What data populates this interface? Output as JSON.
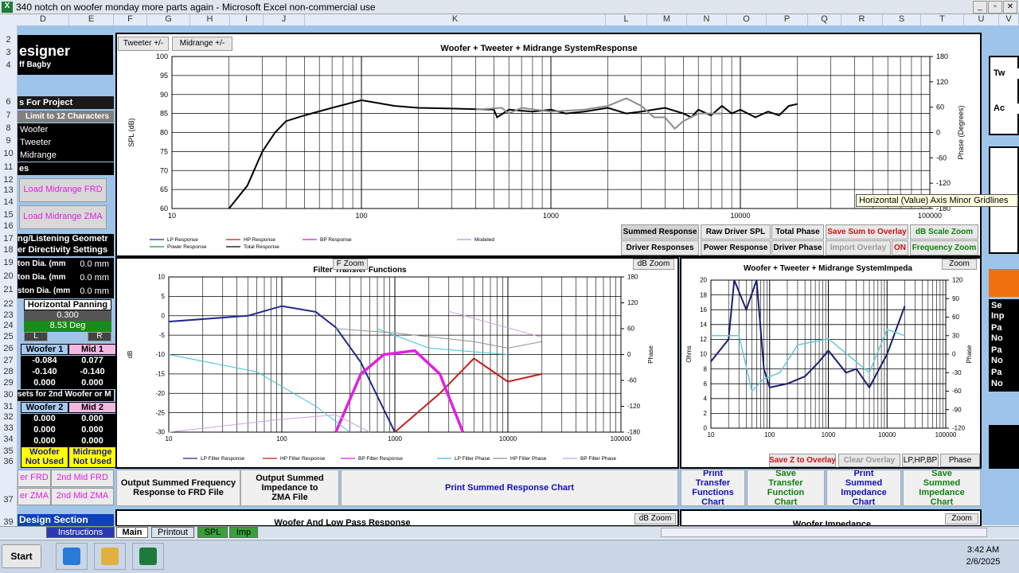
{
  "window": {
    "icon": "X",
    "title": "340 notch on woofer monday more parts again - Microsoft Excel non-commercial use"
  },
  "column_headers": [
    "D",
    "E",
    "F",
    "G",
    "H",
    "I",
    "J",
    "K",
    "L",
    "M",
    "N",
    "O",
    "P",
    "Q",
    "R",
    "S",
    "T",
    "U",
    "V"
  ],
  "row_headers": [
    "2",
    "3",
    "4",
    "6",
    "7",
    "8",
    "9",
    "10",
    "11",
    "12",
    "13",
    "14",
    "15",
    "16",
    "17",
    "18",
    "19",
    "20",
    "21",
    "22",
    "23",
    "24",
    "25",
    "26",
    "27",
    "28",
    "29",
    "30",
    "31",
    "32",
    "33",
    "34",
    "35",
    "36",
    "37",
    "39"
  ],
  "left_panel": {
    "title": "esigner",
    "author": "ff Bagby",
    "project_header": "s For Project",
    "limit_note": "Limit to 12 Characters",
    "drivers": [
      "Woofer",
      "Tweeter",
      "Midrange"
    ],
    "files_header": "es",
    "load_frd": "Load Midrange FRD",
    "load_zma": "Load Midrange ZMA",
    "geometry_header": "ng/Listening Geometr",
    "directivity_header": "er Directivity Settings",
    "piston_rows": [
      {
        "label": "ton Dia. (mm",
        "value": "0.0 mm"
      },
      {
        "label": "ton Dia. (mm",
        "value": "0.0 mm"
      },
      {
        "label": "ston Dia. (mm",
        "value": "0.0 mm"
      }
    ],
    "panning_label": "Horizontal Panning",
    "panning_value": "0.300",
    "angle": "8.53 Deg",
    "left_btn": "L",
    "right_btn": "R",
    "offsets1": {
      "headers": [
        "Woofer 1",
        "Mid 1"
      ],
      "rows": [
        [
          "-0.084",
          "0.077"
        ],
        [
          "-0.140",
          "-0.140"
        ],
        [
          "0.000",
          "0.000"
        ]
      ]
    },
    "offsets2_header": "sets for 2nd Woofer or M",
    "offsets2": {
      "headers": [
        "Woofer 2",
        "Mid 2"
      ],
      "rows": [
        [
          "0.000",
          "0.000"
        ],
        [
          "0.000",
          "0.000"
        ],
        [
          "0.000",
          "0.000"
        ]
      ]
    },
    "not_used": [
      [
        "Woofer",
        "Not Used"
      ],
      [
        "Midrange",
        "Not Used"
      ]
    ],
    "buttons": [
      "er FRD",
      "2nd Mid FRD",
      "er ZMA",
      "2nd Mid ZMA"
    ],
    "design_section": "Design Section"
  },
  "right_panel": [
    "Tw",
    "Ac",
    "Se",
    "Inp",
    "Pa",
    "No",
    "Pa",
    "No",
    "Pa",
    "No"
  ],
  "chart_data": [
    {
      "type": "line",
      "title": "Woofer + Tweeter + Midrange SystemResponse",
      "log_x": true,
      "grid": true,
      "minor_grid": true,
      "xlim": [
        10,
        100000
      ],
      "xticks": [
        10,
        100,
        1000,
        10000,
        100000
      ],
      "ylim": [
        60,
        100
      ],
      "yticks": [
        100,
        95,
        90,
        85,
        80,
        75,
        70,
        65,
        60
      ],
      "y2lim": [
        -180,
        180
      ],
      "y2ticks": [
        180,
        120,
        60,
        0,
        -60,
        -120,
        -180
      ],
      "ylabel": "SPL (dB)",
      "y2label": "Phase (Degrees)",
      "series": [
        {
          "name": "LP Response",
          "color": "#1f2a8c",
          "x": [],
          "values": []
        },
        {
          "name": "HP Response",
          "color": "#c0201a",
          "x": [],
          "values": []
        },
        {
          "name": "BP Response",
          "color": "#d020d0",
          "x": [],
          "values": []
        },
        {
          "name": "Modeled",
          "color": "#b890d8",
          "x": [],
          "values": []
        },
        {
          "name": "Power Response",
          "color": "#2a8a3a",
          "x": [],
          "values": []
        },
        {
          "name": "Total Response",
          "color": "#000000",
          "x": [
            20,
            25,
            30,
            35,
            40,
            50,
            70,
            100,
            150,
            200,
            300,
            500,
            520,
            600,
            800,
            1000,
            1200,
            1500,
            2000,
            2500,
            3000,
            4000,
            5000,
            5500,
            6000,
            7000,
            8000,
            9000,
            10000,
            12000,
            14000,
            16000,
            18000,
            20000
          ],
          "values": [
            60,
            66,
            75,
            80,
            83,
            84.5,
            86.5,
            88.5,
            87,
            86.5,
            86.3,
            86,
            84,
            86,
            85.5,
            86,
            85,
            85.5,
            86.5,
            85,
            85.5,
            86.5,
            85,
            84,
            86,
            84.5,
            87,
            85,
            86,
            84,
            85.5,
            84.5,
            87,
            87.5
          ]
        },
        {
          "color": "#8c8c8c",
          "x": [
            400,
            550,
            600,
            700,
            1000,
            1500,
            2000,
            2500,
            3000,
            3500,
            4000,
            4500,
            5000,
            6000,
            8000
          ],
          "values": [
            86,
            86.5,
            85,
            86.5,
            85.5,
            86,
            87,
            89,
            87,
            84,
            84,
            81,
            83,
            85,
            85
          ]
        }
      ]
    },
    {
      "type": "line",
      "title": "Filter Transfer Functions",
      "log_x": true,
      "grid": true,
      "minor_grid": true,
      "xlim": [
        10,
        100000
      ],
      "xticks": [
        10,
        100,
        1000,
        10000,
        100000
      ],
      "ylim": [
        -30,
        10
      ],
      "yticks": [
        10,
        5,
        0,
        -5,
        -10,
        -15,
        -20,
        -25,
        -30
      ],
      "y2lim": [
        -180,
        180
      ],
      "y2ticks": [
        180,
        120,
        60,
        0,
        -60,
        -120,
        -180
      ],
      "ylabel": "dB",
      "y2label": "Phase",
      "series": [
        {
          "name": "LP Filter Response",
          "color": "#1f2a8c",
          "x": [
            10,
            50,
            100,
            200,
            300,
            500,
            1000
          ],
          "values": [
            -1.5,
            0,
            2.5,
            1,
            -3,
            -12,
            -30
          ]
        },
        {
          "name": "HP Filter Response",
          "color": "#c0201a",
          "x": [
            1000,
            2500,
            5000,
            10000,
            20000
          ],
          "values": [
            -30,
            -20,
            -11,
            -17,
            -15
          ]
        },
        {
          "name": "BP Filter Response",
          "color": "#e020e0",
          "x": [
            300,
            500,
            800,
            1500,
            2500,
            4000
          ],
          "values": [
            -30,
            -15,
            -10,
            -9,
            -15,
            -30
          ]
        },
        {
          "name": "LP Filter Phase",
          "color": "#40c0e0",
          "axis": "y2",
          "x": [
            10,
            60,
            200,
            400,
            450,
            700,
            2000,
            10000
          ],
          "values": [
            0,
            -40,
            -120,
            -180,
            null,
            60,
            15,
            0
          ]
        },
        {
          "name": "HP Filter Phase",
          "color": "#909090",
          "axis": "y2",
          "x": [
            300,
            1000,
            5000,
            10000,
            20000
          ],
          "values": [
            60,
            50,
            30,
            15,
            30
          ]
        },
        {
          "name": "BP Filter Phase",
          "color": "#c8a0e0",
          "axis": "y2",
          "x": [
            10,
            100,
            300,
            600,
            1000,
            3000,
            20000
          ],
          "values": [
            -180,
            -150,
            -140,
            -180,
            null,
            100,
            40
          ]
        }
      ]
    },
    {
      "type": "line",
      "title": "Woofer + Tweeter + Midrange SystemImpeda",
      "log_x": true,
      "grid": true,
      "minor_grid": true,
      "xlim": [
        10,
        100000
      ],
      "xticks": [
        10,
        100,
        1000,
        10000,
        100000
      ],
      "ylim": [
        0,
        20
      ],
      "yticks": [
        20,
        18,
        16,
        14,
        12,
        10,
        8,
        6,
        4,
        2,
        0
      ],
      "y2lim": [
        -120,
        120
      ],
      "y2ticks": [
        120,
        90,
        60,
        30,
        0,
        -30,
        -60,
        -90,
        -120
      ],
      "ylabel": "Ohms",
      "y2label": "Phase",
      "series": [
        {
          "color": "#1a1f70",
          "x": [
            10,
            20,
            25,
            40,
            60,
            80,
            100,
            200,
            400,
            700,
            1000,
            2000,
            3000,
            5000,
            10000,
            20000
          ],
          "values": [
            9,
            12,
            20,
            16,
            20,
            8,
            5.5,
            6,
            7,
            9,
            10.5,
            7.5,
            8,
            5.5,
            10,
            16.5
          ]
        },
        {
          "color": "#60c8e0",
          "axis": "y2",
          "x": [
            10,
            30,
            50,
            80,
            150,
            300,
            1000,
            5000,
            10000,
            20000
          ],
          "values": [
            30,
            30,
            -60,
            -40,
            -30,
            15,
            25,
            -30,
            40,
            30
          ]
        }
      ]
    }
  ],
  "response_buttons": {
    "top": [
      "Tweeter +/-",
      "Midrange +/-"
    ],
    "row1": [
      "Summed Response",
      "Raw Driver SPL",
      "Total Phase",
      "Save Sum to Overlay",
      "dB Scale Zoom"
    ],
    "row2": [
      "Driver Responses",
      "Power Response",
      "Driver Phase",
      "Import Overlay",
      "ON",
      "Frequency Zoom"
    ]
  },
  "tooltip": "Horizontal (Value) Axis Minor Gridlines",
  "filter_buttons": [
    "F Zoom",
    "dB Zoom"
  ],
  "impedance_buttons": [
    "Zoom",
    "Save Z to Overlay",
    "Clear Overlay",
    "LP,HP,BP",
    "Phase"
  ],
  "output_buttons": [
    "Output Summed Frequency Response to FRD File",
    "Output Summed Impedance to ZMA File",
    "Print Summed Response Chart",
    "Print Transfer Functions Chart",
    "Save Transfer Function Chart",
    "Print Summed Impedance Chart",
    "Save Summed Impedance Chart"
  ],
  "lower_titles": [
    "Woofer And Low Pass Response",
    "dB Zoom",
    "Woofer Impedance",
    "Zoom"
  ],
  "sheet_tabs": [
    "Instructions",
    "Main",
    "Printout",
    "SPL",
    "Imp"
  ],
  "taskbar": {
    "start": "Start",
    "time": "3:42 AM",
    "date": "2/6/2025"
  }
}
